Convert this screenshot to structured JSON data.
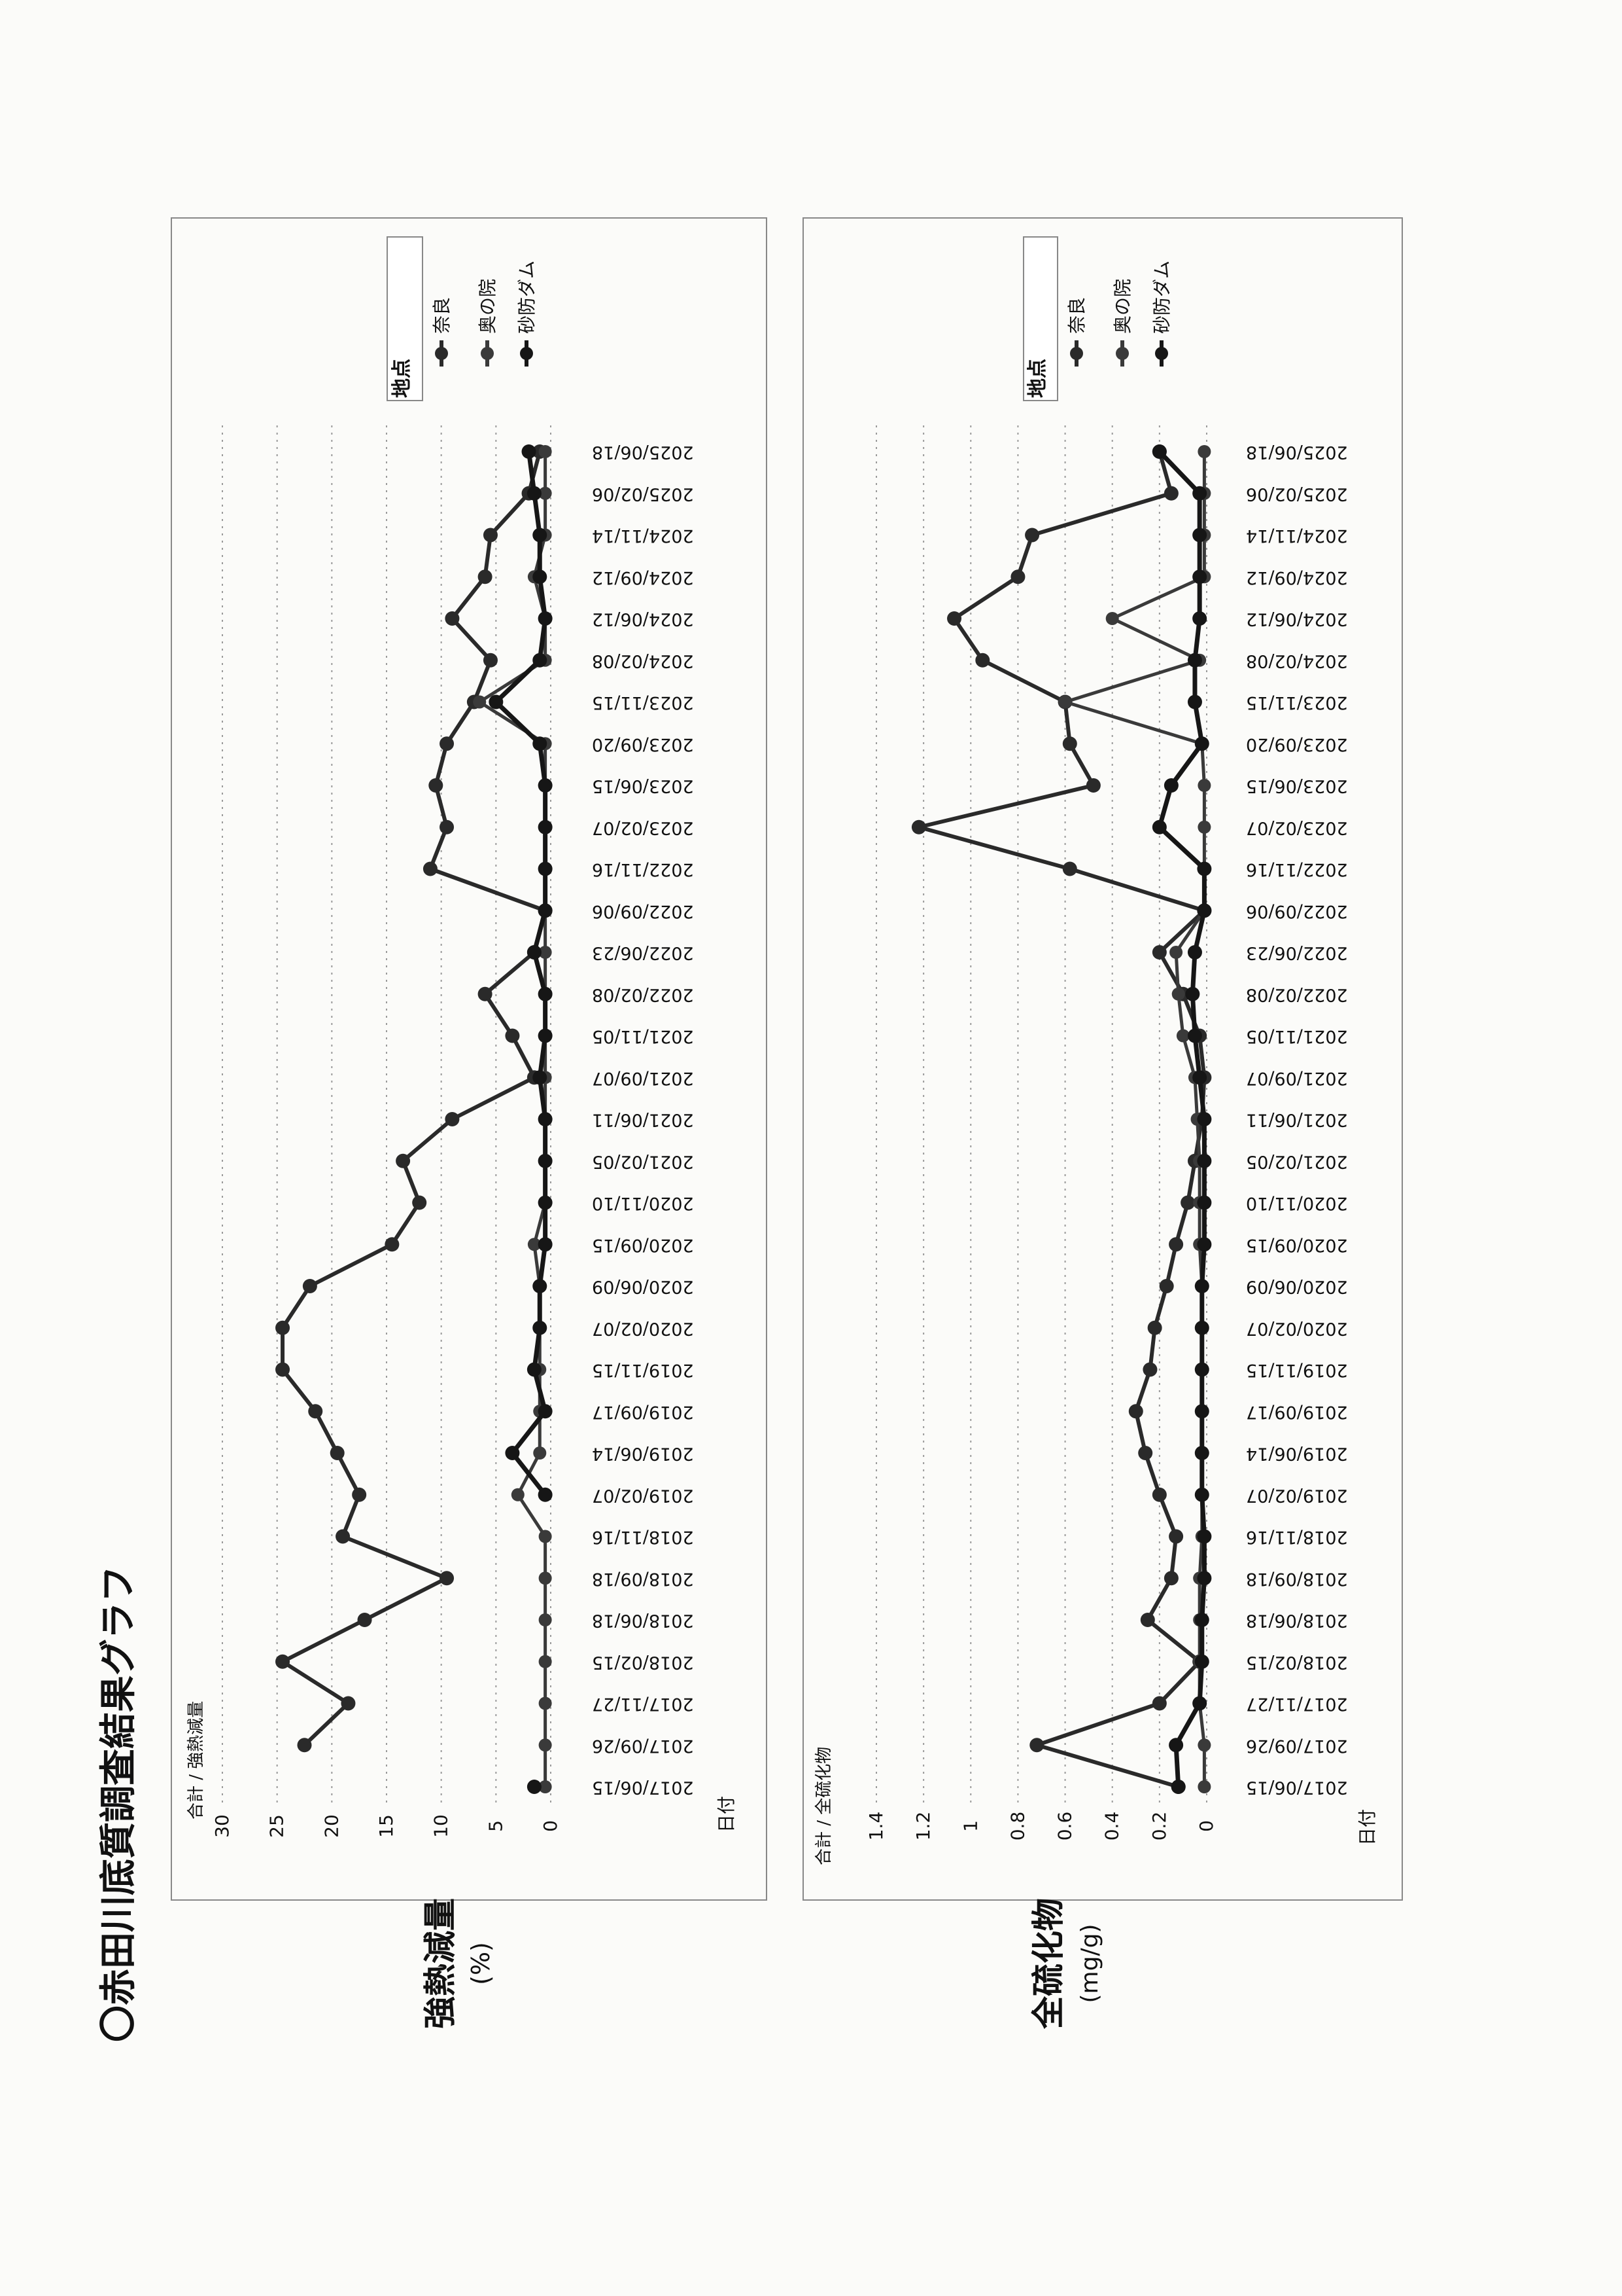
{
  "page": {
    "title": "〇赤田川底質調査結果グラフ"
  },
  "colors": {
    "ink": "#1c1c1c",
    "grid": "#9a9a9a",
    "nara": "#2a2a2a",
    "okunoin": "#3a3a3a",
    "sabo": "#161616"
  },
  "chart_data": [
    {
      "type": "line",
      "side_label": "強熱減量",
      "side_unit": "(%)",
      "header": "合計 / 強熱減量",
      "xlabel": "日付",
      "legend_title": "地点",
      "legend_position": "right",
      "ylim": [
        0,
        30
      ],
      "yticks": [
        0,
        5,
        10,
        15,
        20,
        25,
        30
      ],
      "grid": true,
      "categories": [
        "2017/06/15",
        "2017/09/26",
        "2017/11/27",
        "2018/02/15",
        "2018/06/18",
        "2018/09/18",
        "2018/11/16",
        "2019/02/07",
        "2019/06/14",
        "2019/09/17",
        "2019/11/15",
        "2020/02/07",
        "2020/06/09",
        "2020/09/15",
        "2020/11/10",
        "2021/02/05",
        "2021/06/11",
        "2021/09/07",
        "2021/11/05",
        "2022/02/08",
        "2022/06/23",
        "2022/09/06",
        "2022/11/16",
        "2023/02/07",
        "2023/06/15",
        "2023/09/20",
        "2023/11/15",
        "2024/02/08",
        "2024/06/12",
        "2024/09/12",
        "2024/11/14",
        "2025/02/06",
        "2025/06/18"
      ],
      "series": [
        {
          "name": "奈良",
          "values": [
            null,
            22.5,
            18.5,
            24.5,
            17.0,
            9.5,
            19.0,
            17.5,
            19.5,
            21.5,
            24.5,
            24.5,
            22.0,
            14.5,
            12.0,
            13.5,
            9.0,
            1.5,
            3.5,
            6.0,
            1.5,
            0.5,
            11.0,
            9.5,
            10.5,
            9.5,
            7.0,
            5.5,
            9.0,
            6.0,
            5.5,
            2.0,
            1.0
          ]
        },
        {
          "name": "奥の院",
          "values": [
            0.5,
            0.5,
            0.5,
            0.5,
            0.5,
            0.5,
            0.5,
            3.0,
            1.0,
            1.0,
            1.0,
            1.0,
            1.0,
            1.5,
            0.5,
            0.5,
            0.5,
            0.5,
            0.5,
            0.5,
            0.5,
            0.5,
            0.5,
            0.5,
            0.5,
            0.5,
            6.5,
            0.5,
            0.5,
            1.5,
            0.5,
            0.5,
            0.5
          ]
        },
        {
          "name": "砂防ダム",
          "values": [
            1.5,
            null,
            null,
            null,
            null,
            null,
            null,
            0.5,
            3.5,
            0.5,
            1.5,
            1.0,
            1.0,
            0.5,
            0.5,
            0.5,
            0.5,
            1.0,
            0.5,
            0.5,
            1.5,
            0.5,
            0.5,
            0.5,
            0.5,
            1.0,
            5.0,
            1.0,
            0.5,
            1.0,
            1.0,
            1.5,
            2.0
          ]
        }
      ]
    },
    {
      "type": "line",
      "side_label": "全硫化物",
      "side_unit": "(mg/g)",
      "header": "合計 / 全硫化物",
      "xlabel": "日付",
      "legend_title": "地点",
      "legend_position": "right",
      "ylim": [
        0,
        1.4
      ],
      "yticks": [
        0,
        0.2,
        0.4,
        0.6,
        0.8,
        1,
        1.2,
        1.4
      ],
      "grid": true,
      "categories": [
        "2017/06/15",
        "2017/09/26",
        "2017/11/27",
        "2018/02/15",
        "2018/06/18",
        "2018/09/18",
        "2018/11/16",
        "2019/02/07",
        "2019/06/14",
        "2019/09/17",
        "2019/11/15",
        "2020/02/07",
        "2020/06/09",
        "2020/09/15",
        "2020/11/10",
        "2021/02/05",
        "2021/06/11",
        "2021/09/07",
        "2021/11/05",
        "2022/02/08",
        "2022/06/23",
        "2022/09/06",
        "2022/11/16",
        "2023/02/07",
        "2023/06/15",
        "2023/09/20",
        "2023/11/15",
        "2024/02/08",
        "2024/06/12",
        "2024/09/12",
        "2024/11/14",
        "2025/02/06",
        "2025/06/18"
      ],
      "series": [
        {
          "name": "奈良",
          "values": [
            0.12,
            0.72,
            0.2,
            0.03,
            0.25,
            0.15,
            0.13,
            0.2,
            0.26,
            0.3,
            0.24,
            0.22,
            0.17,
            0.13,
            0.08,
            0.05,
            0.02,
            0.01,
            0.03,
            0.1,
            0.2,
            0.01,
            0.58,
            1.22,
            0.48,
            0.58,
            0.6,
            0.95,
            1.07,
            0.8,
            0.74,
            0.15,
            0.2
          ]
        },
        {
          "name": "奥の院",
          "values": [
            0.01,
            0.01,
            0.03,
            0.03,
            0.03,
            0.03,
            0.02,
            0.02,
            0.02,
            0.02,
            0.02,
            0.02,
            0.02,
            0.03,
            0.03,
            0.03,
            0.04,
            0.05,
            0.1,
            0.12,
            0.13,
            0.01,
            0.01,
            0.01,
            0.01,
            0.02,
            0.6,
            0.03,
            0.4,
            0.01,
            0.01,
            0.01,
            0.01
          ]
        },
        {
          "name": "砂防ダム",
          "values": [
            0.12,
            0.13,
            0.03,
            0.02,
            0.02,
            0.01,
            0.01,
            0.02,
            0.02,
            0.02,
            0.02,
            0.02,
            0.02,
            0.01,
            0.01,
            0.01,
            0.01,
            0.03,
            0.05,
            0.06,
            0.05,
            0.01,
            0.01,
            0.2,
            0.15,
            0.02,
            0.05,
            0.05,
            0.03,
            0.03,
            0.03,
            0.03,
            0.2
          ]
        }
      ]
    }
  ]
}
